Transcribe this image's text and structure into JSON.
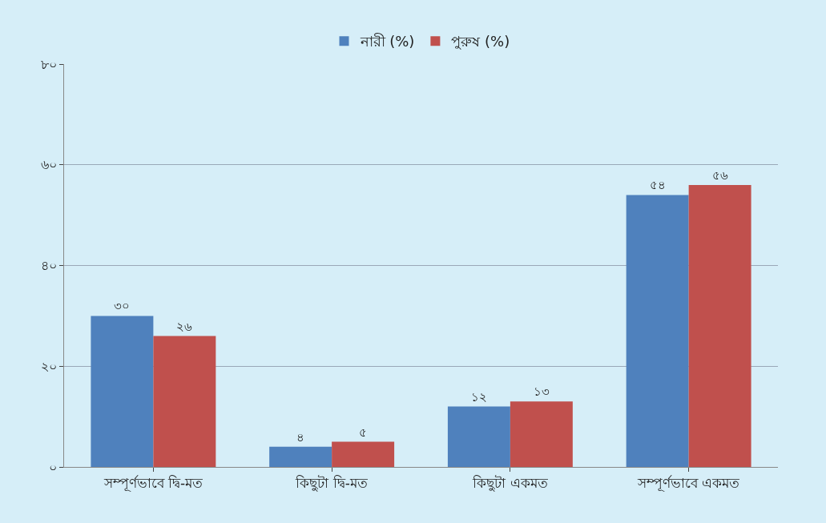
{
  "chart_data": {
    "type": "bar",
    "categories": [
      "সম্পূর্ণভাবে দ্বি-মত",
      "কিছুটা দ্বি-মত",
      "কিছুটা একমত",
      "সম্পূর্ণভাবে একমত"
    ],
    "series": [
      {
        "name": "নারী (%)",
        "color": "#4f81bd",
        "values": [
          30,
          4,
          12,
          54
        ],
        "value_labels": [
          "৩০",
          "৪",
          "১২",
          "৫৪"
        ]
      },
      {
        "name": "পুরুষ (%)",
        "color": "#c0504d",
        "values": [
          26,
          5,
          13,
          56
        ],
        "value_labels": [
          "২৬",
          "৫",
          "১৩",
          "৫৬"
        ]
      }
    ],
    "ylim": [
      0,
      80
    ],
    "yticks": [
      {
        "value": 0,
        "label": "০"
      },
      {
        "value": 20,
        "label": "২০"
      },
      {
        "value": 40,
        "label": "৪০"
      },
      {
        "value": 60,
        "label": "৬০"
      },
      {
        "value": 80,
        "label": "৮০"
      }
    ],
    "grid": "y",
    "legend": "top"
  }
}
